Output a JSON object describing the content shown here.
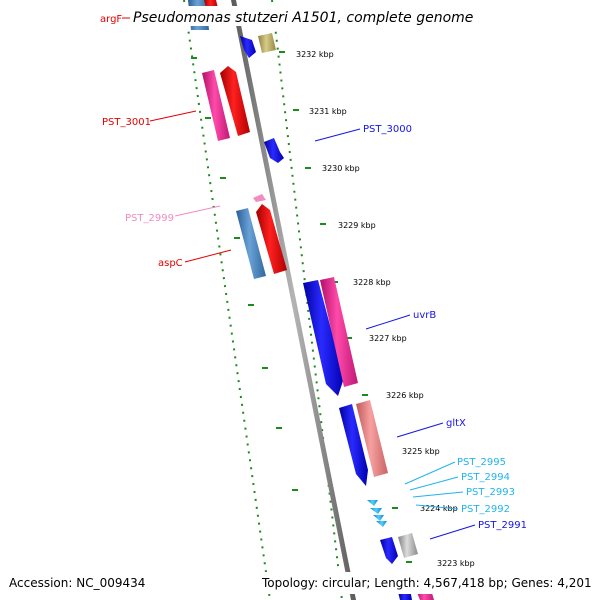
{
  "title": "Pseudomonas stutzeri A1501, complete genome",
  "footer": {
    "accession": "Accession: NC_009434",
    "topology": "Topology: circular; Length: 4,567,418 bp; Genes: 4,201"
  },
  "ticks": [
    "3232 kbp",
    "3231 kbp",
    "3230 kbp",
    "3229 kbp",
    "3228 kbp",
    "3227 kbp",
    "3226 kbp",
    "3225 kbp",
    "3224 kbp",
    "3223 kbp"
  ],
  "labels": {
    "argF": "argF",
    "pst3001": "PST_3001",
    "pst3000": "PST_3000",
    "pst2999": "PST_2999",
    "aspC": "aspC",
    "uvrB": "uvrB",
    "gltX": "gltX",
    "pst2995": "PST_2995",
    "pst2994": "PST_2994",
    "pst2993": "PST_2993",
    "pst2992": "PST_2992",
    "pst2991": "PST_2991"
  },
  "colors": {
    "blue": "#1414e6",
    "red": "#e60000",
    "pink": "#ee2a92",
    "salmon": "#ee8080",
    "steel": "#4a86c0",
    "olive": "#b8ad6a",
    "gray": "#b0b0b0",
    "cyan": "#22b4ee",
    "lightpink": "#f08cc0",
    "dotted": "#1d8a1d",
    "backbone": "#808080"
  }
}
